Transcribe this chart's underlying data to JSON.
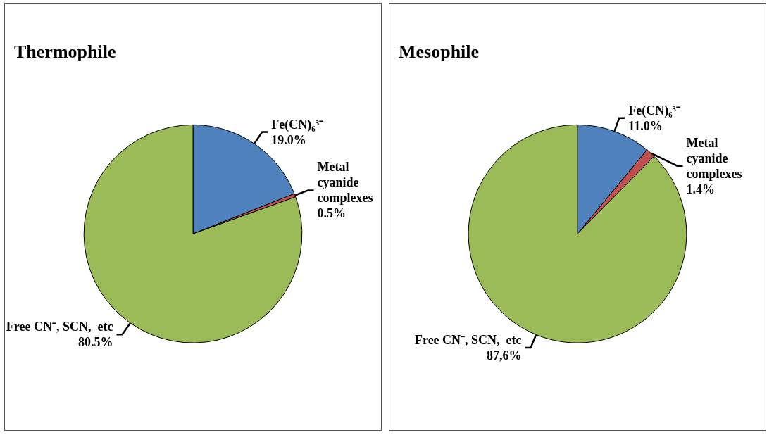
{
  "chart_data": [
    {
      "type": "pie",
      "title": "Thermophile",
      "categories": [
        "Fe(CN)₆³⁻",
        "Metal cyanide complexes",
        "Free CN⁻, SCN,  etc"
      ],
      "values": [
        19.0,
        0.5,
        80.5
      ],
      "value_labels": [
        "19.0%",
        "0.5%",
        "80.5%"
      ],
      "colors": [
        "#4f81bd",
        "#c0504d",
        "#9bbb59"
      ],
      "legend": false
    },
    {
      "type": "pie",
      "title": "Mesophile",
      "categories": [
        "Fe(CN)₆³⁻",
        "Metal cyanide complexes",
        "Free CN⁻, SCN,  etc"
      ],
      "values": [
        11.0,
        1.4,
        87.6
      ],
      "value_labels": [
        "11.0%",
        "1.4%",
        "87,6%"
      ],
      "colors": [
        "#4f81bd",
        "#c0504d",
        "#9bbb59"
      ],
      "legend": false
    }
  ]
}
